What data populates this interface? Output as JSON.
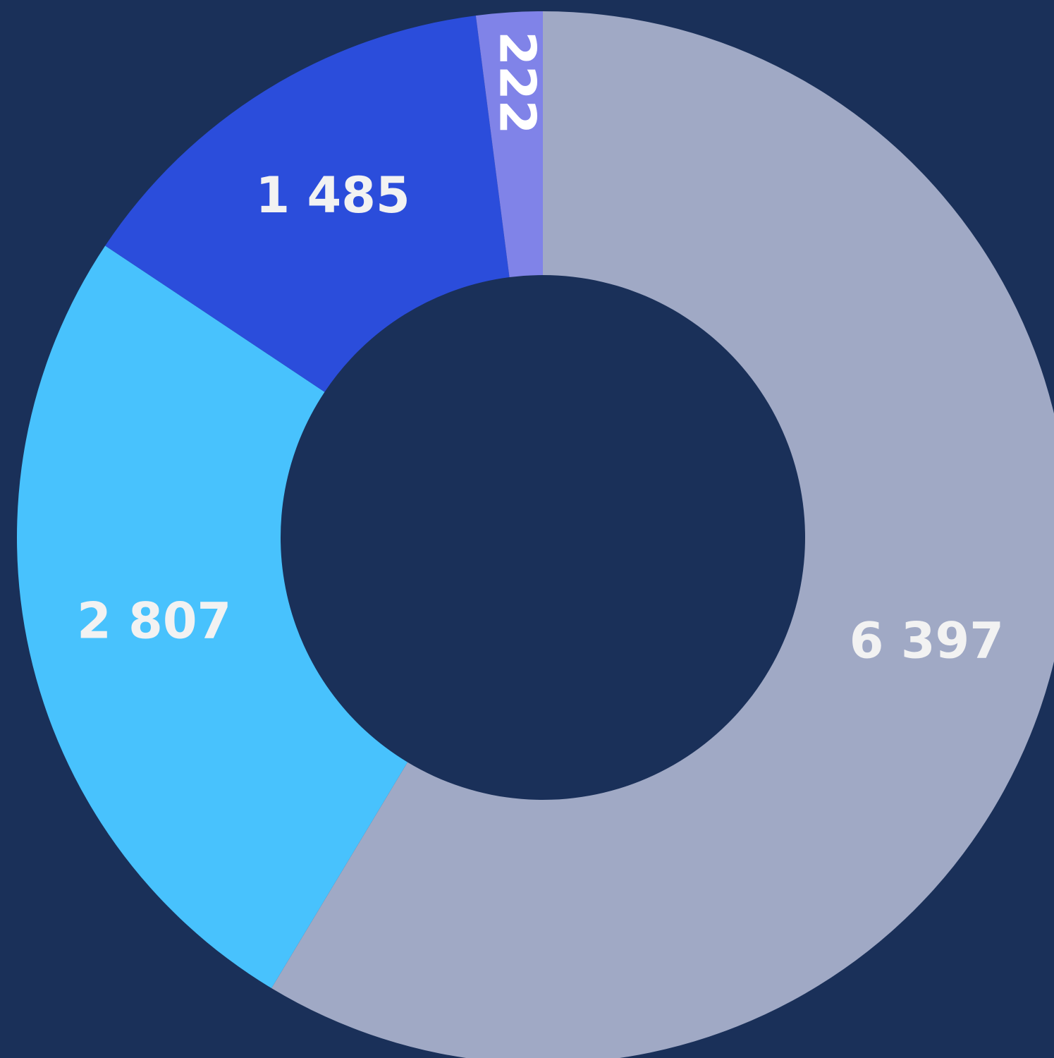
{
  "chart_data": {
    "type": "donut",
    "categories": [
      null,
      null,
      null,
      null
    ],
    "values": [
      6397,
      2807,
      1485,
      222
    ],
    "value_labels": [
      "6 397",
      "2 807",
      "1 485",
      "222"
    ],
    "colors": [
      "#a0a9c5",
      "#48c2fd",
      "#2b4ddb",
      "#8083e8"
    ]
  }
}
